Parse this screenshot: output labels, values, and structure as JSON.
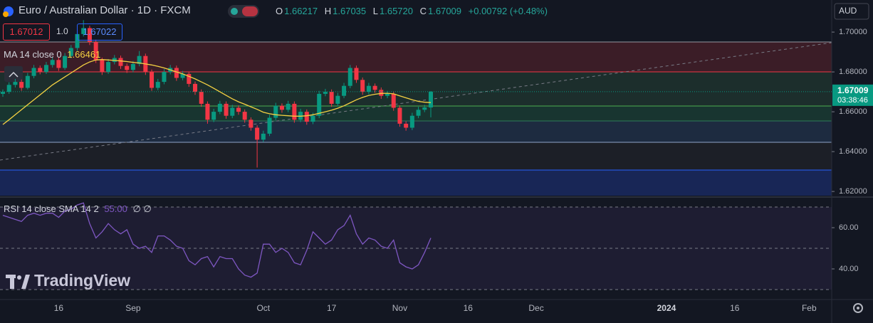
{
  "header": {
    "title": "Euro / Australian Dollar · 1D · FXCM",
    "ohlc": [
      {
        "label": "O",
        "value": "1.66217"
      },
      {
        "label": "H",
        "value": "1.67035"
      },
      {
        "label": "L",
        "value": "1.65720"
      },
      {
        "label": "C",
        "value": "1.67009"
      }
    ],
    "change": "+0.00792 (+0.48%)",
    "bid": "1.67012",
    "spread": "1.0",
    "ask": "1.67022",
    "currency": "AUD",
    "last_price": "1.67009",
    "countdown": "03:38:46",
    "watermark": "TradingView"
  },
  "chart_data": [
    {
      "type": "candlestick",
      "categories": [
        null,
        null,
        null,
        null,
        null,
        null,
        null,
        null,
        null,
        "16",
        null,
        null,
        null,
        null,
        null,
        null,
        null,
        null,
        null,
        null,
        null,
        "Sep",
        null,
        null,
        null,
        null,
        null,
        null,
        null,
        null,
        null,
        null,
        null,
        null,
        null,
        null,
        null,
        null,
        null,
        null,
        null,
        null,
        "Oct",
        null,
        null,
        null,
        null,
        null,
        null,
        null,
        null,
        null,
        null,
        "17",
        null,
        null,
        null,
        null,
        null,
        null,
        null,
        null,
        null,
        null,
        "Nov",
        null,
        null,
        null,
        null,
        null,
        null,
        null,
        null,
        null,
        null,
        "16",
        null,
        null,
        null,
        null,
        null,
        null,
        null,
        null,
        null,
        null,
        "Dec",
        null,
        null,
        null,
        null,
        null,
        null,
        null,
        null,
        null,
        null,
        null,
        null,
        null,
        null,
        null,
        null,
        null,
        null,
        null,
        null,
        "2024",
        null,
        null,
        null,
        null,
        null,
        null,
        null,
        null,
        null,
        null,
        "16",
        null,
        null,
        null,
        null,
        null,
        null,
        null,
        null,
        null,
        null,
        null,
        "Feb",
        null,
        null,
        null
      ],
      "series": [
        {
          "up_color": "#089981",
          "down_color": "#f23645",
          "values": [
            [
              1.669,
              1.6712,
              1.6675,
              1.67
            ],
            [
              1.67,
              1.6748,
              1.669,
              1.6735
            ],
            [
              1.6735,
              1.6765,
              1.6722,
              1.675
            ],
            [
              1.675,
              1.6762,
              1.6705,
              1.672
            ],
            [
              1.672,
              1.6795,
              1.6712,
              1.678
            ],
            [
              1.678,
              1.6835,
              1.6768,
              1.682
            ],
            [
              1.682,
              1.6832,
              1.6788,
              1.68
            ],
            [
              1.68,
              1.685,
              1.679,
              1.6835
            ],
            [
              1.6835,
              1.6875,
              1.6822,
              1.686
            ],
            [
              1.686,
              1.6872,
              1.6805,
              1.682
            ],
            [
              1.682,
              1.6895,
              1.681,
              1.688
            ],
            [
              1.688,
              1.6935,
              1.6868,
              1.692
            ],
            [
              1.692,
              1.701,
              1.6905,
              1.699
            ],
            [
              1.699,
              1.706,
              1.6978,
              1.702
            ],
            [
              1.702,
              1.7032,
              1.6935,
              1.695
            ],
            [
              1.695,
              1.6962,
              1.6845,
              1.686
            ],
            [
              1.686,
              1.6872,
              1.6785,
              1.68
            ],
            [
              1.68,
              1.6865,
              1.679,
              1.685
            ],
            [
              1.685,
              1.6885,
              1.6838,
              1.687
            ],
            [
              1.687,
              1.6882,
              1.6815,
              1.683
            ],
            [
              1.683,
              1.6842,
              1.6795,
              1.681
            ],
            [
              1.681,
              1.6855,
              1.6798,
              1.684
            ],
            [
              1.684,
              1.6905,
              1.6828,
              1.688
            ],
            [
              1.688,
              1.6892,
              1.6785,
              1.68
            ],
            [
              1.68,
              1.6812,
              1.6705,
              1.672
            ],
            [
              1.672,
              1.6765,
              1.6708,
              1.675
            ],
            [
              1.675,
              1.6815,
              1.6738,
              1.68
            ],
            [
              1.68,
              1.6835,
              1.6788,
              1.682
            ],
            [
              1.682,
              1.6832,
              1.6755,
              1.677
            ],
            [
              1.677,
              1.6805,
              1.6758,
              1.679
            ],
            [
              1.679,
              1.6802,
              1.6725,
              1.674
            ],
            [
              1.674,
              1.6752,
              1.6685,
              1.67
            ],
            [
              1.67,
              1.6712,
              1.6625,
              1.664
            ],
            [
              1.664,
              1.6652,
              1.654,
              1.656
            ],
            [
              1.656,
              1.6615,
              1.6548,
              1.66
            ],
            [
              1.66,
              1.6655,
              1.6588,
              1.664
            ],
            [
              1.664,
              1.6652,
              1.6565,
              1.658
            ],
            [
              1.658,
              1.6635,
              1.6568,
              1.662
            ],
            [
              1.662,
              1.6632,
              1.6585,
              1.66
            ],
            [
              1.66,
              1.6612,
              1.6545,
              1.656
            ],
            [
              1.656,
              1.6572,
              1.6505,
              1.652
            ],
            [
              1.652,
              1.6532,
              1.632,
              1.646
            ],
            [
              1.646,
              1.6505,
              1.6448,
              1.649
            ],
            [
              1.649,
              1.6585,
              1.6478,
              1.657
            ],
            [
              1.657,
              1.6645,
              1.6558,
              1.663
            ],
            [
              1.663,
              1.6642,
              1.6595,
              1.661
            ],
            [
              1.661,
              1.6655,
              1.6598,
              1.664
            ],
            [
              1.664,
              1.6652,
              1.6545,
              1.656
            ],
            [
              1.656,
              1.6615,
              1.6548,
              1.66
            ],
            [
              1.66,
              1.6612,
              1.6535,
              1.655
            ],
            [
              1.655,
              1.6595,
              1.6538,
              1.658
            ],
            [
              1.658,
              1.6705,
              1.6568,
              1.669
            ],
            [
              1.669,
              1.6715,
              1.6678,
              1.67
            ],
            [
              1.67,
              1.6712,
              1.6625,
              1.664
            ],
            [
              1.664,
              1.6695,
              1.6628,
              1.668
            ],
            [
              1.668,
              1.6745,
              1.6668,
              1.673
            ],
            [
              1.673,
              1.6835,
              1.6718,
              1.682
            ],
            [
              1.682,
              1.6832,
              1.6745,
              1.676
            ],
            [
              1.676,
              1.6772,
              1.6685,
              1.67
            ],
            [
              1.67,
              1.6745,
              1.6688,
              1.673
            ],
            [
              1.673,
              1.6742,
              1.6695,
              1.671
            ],
            [
              1.671,
              1.6722,
              1.6665,
              1.668
            ],
            [
              1.668,
              1.6705,
              1.6668,
              1.669
            ],
            [
              1.669,
              1.6702,
              1.6605,
              1.662
            ],
            [
              1.662,
              1.6632,
              1.6525,
              1.654
            ],
            [
              1.654,
              1.6552,
              1.6505,
              1.652
            ],
            [
              1.652,
              1.6595,
              1.6508,
              1.658
            ],
            [
              1.658,
              1.6625,
              1.6568,
              1.661
            ],
            [
              1.661,
              1.6635,
              1.6598,
              1.66217
            ],
            [
              1.66217,
              1.67035,
              1.6572,
              1.67009
            ],
            null,
            null,
            null,
            null,
            null,
            null,
            null,
            null,
            null,
            null,
            null,
            null,
            null,
            null,
            null,
            null,
            null,
            null,
            null,
            null,
            null,
            null,
            null,
            null,
            null,
            null,
            null,
            null,
            null,
            null,
            null,
            null,
            null,
            null,
            null,
            null,
            null,
            null,
            null,
            null,
            null,
            null,
            null,
            null,
            null,
            null,
            null,
            null,
            null,
            null,
            null,
            null,
            null,
            null,
            null,
            null,
            null,
            null,
            null,
            null,
            null,
            null,
            null,
            null
          ]
        },
        {
          "type": "line",
          "name": "MA 14 close 0",
          "legend_value": "1.66461",
          "color": "#f5d142",
          "values": [
            1.6536,
            1.656,
            1.6585,
            1.661,
            1.6635,
            1.666,
            1.6685,
            1.671,
            1.6735,
            1.6755,
            1.6775,
            1.6795,
            1.6815,
            1.6835,
            1.685,
            1.686,
            1.6862,
            1.686,
            1.6858,
            1.6855,
            1.6852,
            1.6848,
            1.6845,
            1.684,
            1.6835,
            1.6828,
            1.682,
            1.681,
            1.68,
            1.679,
            1.6778,
            1.6765,
            1.675,
            1.6735,
            1.6718,
            1.67,
            1.6682,
            1.6665,
            1.665,
            1.6638,
            1.6625,
            1.6612,
            1.6598,
            1.659,
            1.6585,
            1.6582,
            1.658,
            1.6578,
            1.6578,
            1.658,
            1.6585,
            1.6592,
            1.66,
            1.6608,
            1.6618,
            1.663,
            1.6645,
            1.666,
            1.6672,
            1.6682,
            1.6688,
            1.6692,
            1.6693,
            1.669,
            1.668,
            1.667,
            1.666,
            1.6652,
            1.6648,
            1.66461,
            null,
            null,
            null,
            null,
            null,
            null,
            null,
            null,
            null,
            null,
            null,
            null,
            null,
            null,
            null,
            null,
            null,
            null,
            null,
            null,
            null,
            null,
            null,
            null,
            null,
            null,
            null,
            null,
            null,
            null,
            null,
            null,
            null,
            null,
            null,
            null,
            null,
            null,
            null,
            null,
            null,
            null,
            null,
            null,
            null,
            null,
            null,
            null,
            null,
            null,
            null,
            null,
            null,
            null,
            null,
            null,
            null,
            null,
            null,
            null,
            null,
            null,
            null,
            null
          ]
        }
      ],
      "ylim": [
        1.6179,
        1.7161
      ],
      "yticks": [
        {
          "value": 1.7,
          "label": "1.70000"
        },
        {
          "value": 1.68,
          "label": "1.68000"
        },
        {
          "value": 1.66,
          "label": "1.66000"
        },
        {
          "value": 1.64,
          "label": "1.64000"
        },
        {
          "value": 1.62,
          "label": "1.62000"
        }
      ]
    },
    {
      "type": "line",
      "name": "RSI 14 close SMA 14 2",
      "legend_value": "55.00",
      "legend_extra": "∅ ∅",
      "color": "#7e57c2",
      "values": [
        66,
        65,
        64,
        63,
        66,
        67,
        66,
        67,
        67,
        65,
        68,
        69,
        71,
        72,
        62,
        55,
        58,
        62,
        59,
        57,
        59,
        52,
        50,
        51,
        48,
        56,
        56,
        54,
        51,
        50,
        44,
        42,
        45,
        46,
        41,
        46,
        45,
        45,
        40,
        37,
        36,
        38,
        52,
        52,
        48,
        50,
        48,
        43,
        42,
        49,
        58,
        55,
        52,
        54,
        59,
        61,
        66,
        57,
        52,
        55,
        54,
        51,
        50,
        54,
        43,
        41,
        40,
        42,
        48,
        55,
        null,
        null,
        null,
        null,
        null,
        null,
        null,
        null,
        null,
        null,
        null,
        null,
        null,
        null,
        null,
        null,
        null,
        null,
        null,
        null,
        null,
        null,
        null,
        null,
        null,
        null,
        null,
        null,
        null,
        null,
        null,
        null,
        null,
        null,
        null,
        null,
        null,
        null,
        null,
        null,
        null,
        null,
        null,
        null,
        null,
        null,
        null,
        null,
        null,
        null,
        null,
        null,
        null,
        null,
        null,
        null,
        null,
        null,
        null,
        null,
        null,
        null,
        null,
        null
      ],
      "ylim": [
        25.5,
        74.5
      ],
      "yticks": [
        {
          "value": 60,
          "label": "60.00"
        },
        {
          "value": 40,
          "label": "40.00"
        }
      ],
      "levels": [
        70,
        50,
        30
      ]
    }
  ]
}
